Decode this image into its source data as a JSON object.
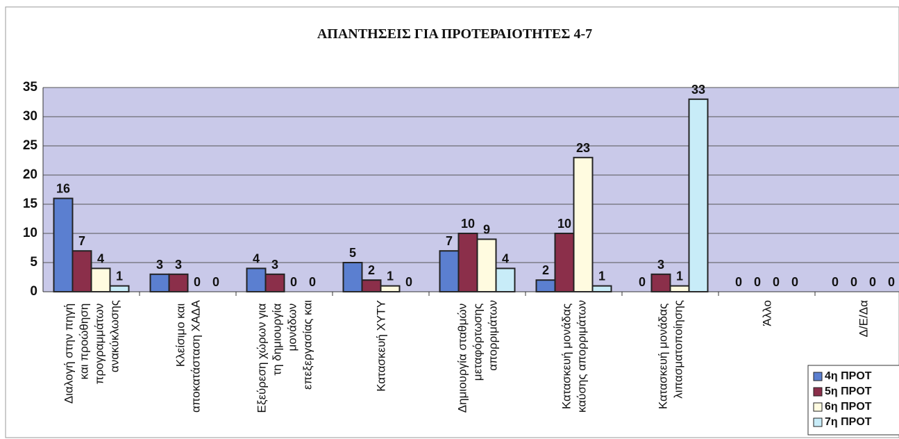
{
  "chart_data": {
    "type": "bar",
    "title": "ΑΠΑΝΤΗΣΕΙΣ ΓΙΑ ΠΡΟΤΕΡΑΙΟΤΗΤΕΣ 4-7",
    "categories": [
      "Διαλογή στην πηγή και προώθηση προγραμμάτων ανακύκλωσης",
      "Κλείσιμο και αποκατάσταση ΧΑΔΑ",
      "Εξεύρεση χώρων για τη δημιουργία μονάδων επεξεργασίας και",
      "Κατασκευή ΧΥΤΥ",
      "Δημιουργία σταθμών μεταφόρτωσης απορριμάτων",
      "Κατασκευή μονάδας καύσης απορριμάτων",
      "Κατασκευή μονάδας λιπασματοποίησης",
      "Άλλο",
      "Δ/Ε/Δα"
    ],
    "series": [
      {
        "name": "4η ΠΡΟΤ",
        "color": "#5b7fd0",
        "values": [
          16,
          3,
          4,
          5,
          7,
          2,
          0,
          0,
          0
        ]
      },
      {
        "name": "5η ΠΡΟΤ",
        "color": "#8b2f4a",
        "values": [
          7,
          3,
          3,
          2,
          10,
          10,
          3,
          0,
          0
        ]
      },
      {
        "name": "6η ΠΡΟΤ",
        "color": "#fffbe0",
        "values": [
          4,
          0,
          0,
          1,
          9,
          23,
          1,
          0,
          0
        ]
      },
      {
        "name": "7η ΠΡΟΤ",
        "color": "#c8ecf8",
        "values": [
          1,
          0,
          0,
          0,
          4,
          1,
          33,
          0,
          0
        ]
      }
    ],
    "ylim": [
      0,
      35
    ],
    "yticks": [
      0,
      5,
      10,
      15,
      20,
      25,
      30,
      35
    ],
    "grid": true,
    "legend": "bottom-right"
  }
}
